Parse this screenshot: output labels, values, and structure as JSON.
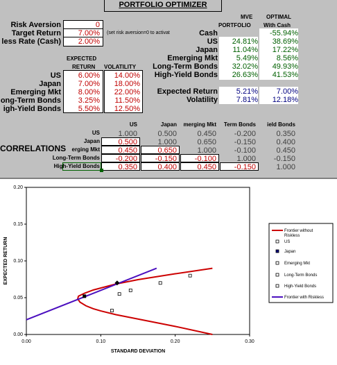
{
  "title": "PORTFOLIO OPTIMIZER",
  "inputs": {
    "risk_aversion_label": "Risk Aversion",
    "risk_aversion_value": "0",
    "target_return_label": "Target Return",
    "target_return_value": "7.00%",
    "riskless_label": "less Rate (Cash)",
    "riskless_value": "2.00%",
    "note": "(set risk aversion=0 to activat"
  },
  "asset_table": {
    "header1": "EXPECTED",
    "header2": "RETURN",
    "header3": "VOLATILITY",
    "rows": [
      {
        "label": "US",
        "ret": "6.00%",
        "vol": "14.00%"
      },
      {
        "label": "Japan",
        "ret": "7.00%",
        "vol": "18.00%"
      },
      {
        "label": "Emerging Mkt",
        "ret": "8.00%",
        "vol": "22.00%"
      },
      {
        "label": "ong-Term Bonds",
        "ret": "3.25%",
        "vol": "11.50%"
      },
      {
        "label": "igh-Yield Bonds",
        "ret": "5.50%",
        "vol": "12.50%"
      }
    ]
  },
  "portfolio": {
    "h_mve1": "MVE",
    "h_mve2": "PORTFOLIO",
    "h_opt1": "OPTIMAL",
    "h_opt2": "With Cash",
    "rows": [
      {
        "label": "Cash",
        "mve": "",
        "opt": "-55.94%"
      },
      {
        "label": "US",
        "mve": "24.81%",
        "opt": "38.69%"
      },
      {
        "label": "Japan",
        "mve": "11.04%",
        "opt": "17.22%"
      },
      {
        "label": "Emerging Mkt",
        "mve": "5.49%",
        "opt": "8.56%"
      },
      {
        "label": "Long-Term Bonds",
        "mve": "32.02%",
        "opt": "49.93%"
      },
      {
        "label": "High-Yield Bonds",
        "mve": "26.63%",
        "opt": "41.53%"
      }
    ],
    "exp_label": "Expected Return",
    "exp_mve": "5.21%",
    "exp_opt": "7.00%",
    "vol_label": "Volatility",
    "vol_mve": "7.81%",
    "vol_opt": "12.18%"
  },
  "correlations": {
    "title": "CORRELATIONS",
    "cols": [
      "US",
      "Japan",
      "merging Mkt",
      "Term Bonds",
      "ield Bonds"
    ],
    "rows": [
      {
        "label": "US",
        "vals": [
          "1.000",
          "0.500",
          "0.450",
          "-0.200",
          "0.350"
        ]
      },
      {
        "label": "Japan",
        "vals": [
          "0.500",
          "1.000",
          "0.650",
          "-0.150",
          "0.400"
        ]
      },
      {
        "label": "erging Mkt",
        "vals": [
          "0.450",
          "0.650",
          "1.000",
          "-0.100",
          "0.450"
        ]
      },
      {
        "label": "Long-Term Bonds",
        "vals": [
          "-0.200",
          "-0.150",
          "-0.100",
          "1.000",
          "-0.150"
        ]
      },
      {
        "label": "High-Yield Bonds",
        "vals": [
          "0.350",
          "0.400",
          "0.450",
          "-0.150",
          "1.000"
        ]
      }
    ]
  },
  "chart_data": {
    "type": "scatter",
    "xlabel": "STANDARD DEVIATION",
    "ylabel": "EXPECTED RETURN",
    "xlim": [
      0,
      0.3
    ],
    "ylim": [
      0,
      0.2
    ],
    "xticks": [
      "0.00",
      "0.10",
      "0.20",
      "0.30"
    ],
    "yticks": [
      "0.00",
      "0.05",
      "0.10",
      "0.15",
      "0.20"
    ],
    "frontier_no_riskless": [
      [
        0.25,
        0.0
      ],
      [
        0.2,
        0.011
      ],
      [
        0.15,
        0.021
      ],
      [
        0.12,
        0.027
      ],
      [
        0.1,
        0.032
      ],
      [
        0.09,
        0.035
      ],
      [
        0.08,
        0.039
      ],
      [
        0.072,
        0.044
      ],
      [
        0.069,
        0.0485
      ],
      [
        0.07,
        0.052
      ],
      [
        0.078,
        0.056
      ],
      [
        0.09,
        0.0605
      ],
      [
        0.12,
        0.0685
      ],
      [
        0.15,
        0.0745
      ],
      [
        0.2,
        0.0825
      ],
      [
        0.25,
        0.09
      ]
    ],
    "frontier_riskless": [
      [
        0.0,
        0.02
      ],
      [
        0.175,
        0.09
      ]
    ],
    "series": [
      {
        "name": "US",
        "x": 0.14,
        "y": 0.06
      },
      {
        "name": "Japan",
        "x": 0.18,
        "y": 0.07
      },
      {
        "name": "Emerging Mkt",
        "x": 0.22,
        "y": 0.08
      },
      {
        "name": "Long-Term Bonds",
        "x": 0.115,
        "y": 0.0325
      },
      {
        "name": "High-Yield Bonds",
        "x": 0.125,
        "y": 0.055
      }
    ],
    "mve_point": {
      "x": 0.078,
      "y": 0.052
    },
    "optimal_point": {
      "x": 0.122,
      "y": 0.07
    },
    "legend": [
      "Frontier without Riskless",
      "US",
      "Japan",
      "Emerging Mkt",
      "Long-Term Bonds",
      "High-Yield Bonds",
      "Frontier with Riskless"
    ],
    "legend_position": "right",
    "colors": {
      "no_riskless": "#cc0000",
      "riskless": "#4b0fbf"
    }
  }
}
